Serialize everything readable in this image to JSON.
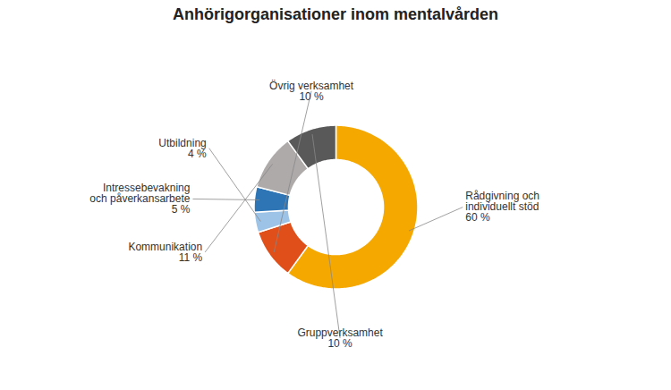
{
  "chart_data": {
    "type": "pie",
    "title": "Anhörigorganisationer inom mentalvården",
    "categories": [
      "Rådgivning och\nindividuellt stöd",
      "Övrig verksamhet",
      "Utbildning",
      "Intressebevakning\noch påverkansarbete",
      "Kommunikation",
      "Gruppverksamhet"
    ],
    "values": [
      60,
      10,
      4,
      5,
      11,
      10
    ],
    "value_labels": [
      "60 %",
      "10 %",
      "4 %",
      "5 %",
      "11 %",
      "10 %"
    ],
    "data_labels": true,
    "colors": [
      "#F5A800",
      "#E04F1A",
      "#9DC3E6",
      "#2E75B6",
      "#AEAAAA",
      "#595959"
    ]
  }
}
